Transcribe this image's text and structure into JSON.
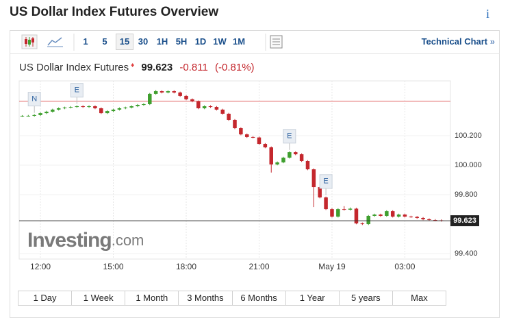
{
  "header": {
    "title": "US Dollar Index Futures Overview",
    "info_icon": "i"
  },
  "toolbar": {
    "intervals": [
      "1",
      "5",
      "15",
      "30",
      "1H",
      "5H",
      "1D",
      "1W",
      "1M"
    ],
    "active": "15",
    "link": "Technical Chart",
    "link_arrow": "»"
  },
  "quote": {
    "name": "US Dollar Index Futures",
    "price": "99.623",
    "change": "-0.811",
    "change_pct": "(-0.81%)"
  },
  "chart_data": {
    "type": "candlestick",
    "up_color": "#3f9f2f",
    "down_color": "#c4272d",
    "open": [
      100.333,
      100.335,
      100.335,
      100.34,
      100.353,
      100.363,
      100.377,
      100.386,
      100.391,
      100.395,
      100.4,
      100.395,
      100.4,
      100.386,
      100.353,
      100.367,
      100.377,
      100.386,
      100.391,
      100.4,
      100.409,
      100.414,
      100.484,
      100.502,
      100.493,
      100.502,
      100.493,
      100.47,
      100.447,
      100.433,
      100.386,
      100.4,
      100.395,
      100.377,
      100.349,
      100.307,
      100.251,
      100.209,
      100.191,
      100.188,
      100.144,
      100.121,
      100.005,
      100.019,
      100.051,
      100.088,
      100.074,
      100.028,
      99.972,
      99.851,
      99.781,
      99.702,
      99.651,
      99.702,
      99.698,
      99.705,
      99.605,
      99.6,
      99.656,
      99.665,
      99.656,
      99.688,
      99.651,
      99.665,
      99.651,
      99.649,
      99.642,
      99.633,
      99.628,
      99.626
    ],
    "high": [
      100.34,
      100.341,
      100.346,
      100.359,
      100.369,
      100.383,
      100.392,
      100.397,
      100.401,
      100.406,
      100.406,
      100.406,
      100.406,
      100.392,
      100.373,
      100.383,
      100.392,
      100.397,
      100.406,
      100.415,
      100.42,
      100.49,
      100.51,
      100.508,
      100.508,
      100.508,
      100.499,
      100.476,
      100.453,
      100.439,
      100.406,
      100.406,
      100.401,
      100.383,
      100.355,
      100.313,
      100.257,
      100.215,
      100.197,
      100.194,
      100.15,
      100.127,
      100.025,
      100.057,
      100.094,
      100.094,
      100.08,
      100.034,
      99.978,
      99.857,
      99.787,
      99.708,
      99.708,
      99.722,
      99.713,
      99.711,
      99.611,
      99.662,
      99.671,
      99.671,
      99.694,
      99.694,
      99.671,
      99.671,
      99.657,
      99.655,
      99.648,
      99.639,
      99.634,
      99.632
    ],
    "low": [
      100.327,
      100.329,
      100.329,
      100.334,
      100.347,
      100.357,
      100.371,
      100.38,
      100.385,
      100.389,
      100.389,
      100.389,
      100.38,
      100.347,
      100.347,
      100.361,
      100.371,
      100.38,
      100.385,
      100.394,
      100.403,
      100.408,
      100.478,
      100.487,
      100.487,
      100.487,
      100.464,
      100.441,
      100.427,
      100.38,
      100.38,
      100.389,
      100.371,
      100.343,
      100.301,
      100.245,
      100.203,
      100.185,
      100.182,
      100.138,
      100.115,
      99.95,
      99.999,
      100.013,
      100.045,
      100.068,
      100.022,
      99.966,
      99.716,
      99.775,
      99.696,
      99.645,
      99.645,
      99.692,
      99.692,
      99.599,
      99.594,
      99.594,
      99.65,
      99.65,
      99.65,
      99.645,
      99.645,
      99.645,
      99.643,
      99.636,
      99.627,
      99.622,
      99.62,
      99.617
    ],
    "close": [
      100.335,
      100.335,
      100.34,
      100.353,
      100.363,
      100.377,
      100.386,
      100.391,
      100.395,
      100.4,
      100.395,
      100.4,
      100.386,
      100.353,
      100.367,
      100.377,
      100.386,
      100.391,
      100.4,
      100.409,
      100.414,
      100.484,
      100.502,
      100.493,
      100.502,
      100.493,
      100.47,
      100.447,
      100.433,
      100.386,
      100.4,
      100.395,
      100.377,
      100.349,
      100.307,
      100.251,
      100.209,
      100.191,
      100.188,
      100.144,
      100.121,
      100.005,
      100.019,
      100.051,
      100.088,
      100.074,
      100.028,
      99.972,
      99.851,
      99.781,
      99.702,
      99.651,
      99.702,
      99.698,
      99.705,
      99.605,
      99.6,
      99.656,
      99.665,
      99.656,
      99.688,
      99.651,
      99.665,
      99.651,
      99.649,
      99.642,
      99.633,
      99.628,
      99.626,
      99.623
    ],
    "xlim": [
      -0.5,
      70.5
    ],
    "xticks": [
      {
        "value": 3,
        "label": "12:00"
      },
      {
        "value": 15,
        "label": "15:00"
      },
      {
        "value": 27,
        "label": "18:00"
      },
      {
        "value": 39,
        "label": "21:00"
      },
      {
        "value": 51,
        "label": "May 19"
      },
      {
        "value": 63,
        "label": "03:00"
      }
    ],
    "ylim": [
      99.363,
      100.572
    ],
    "yticks": [
      {
        "value": 100.2,
        "label": "100.200"
      },
      {
        "value": 100,
        "label": "100.000"
      },
      {
        "value": 99.8,
        "label": "99.800"
      },
      {
        "value": 99.4,
        "label": "99.400"
      }
    ],
    "reference_line": 100.434,
    "reference_color": "#e0605f",
    "last": {
      "value": 99.623,
      "label": "99.623"
    },
    "events": [
      {
        "label": "N",
        "at": 2
      },
      {
        "label": "E",
        "at": 9
      },
      {
        "label": "E",
        "at": 44
      },
      {
        "label": "E",
        "at": 50
      }
    ],
    "watermark": {
      "brand": "Investing",
      "suffix": ".com"
    },
    "grid": true
  },
  "ranges": [
    "1 Day",
    "1 Week",
    "1 Month",
    "3 Months",
    "6 Months",
    "1 Year",
    "5 years",
    "Max"
  ]
}
